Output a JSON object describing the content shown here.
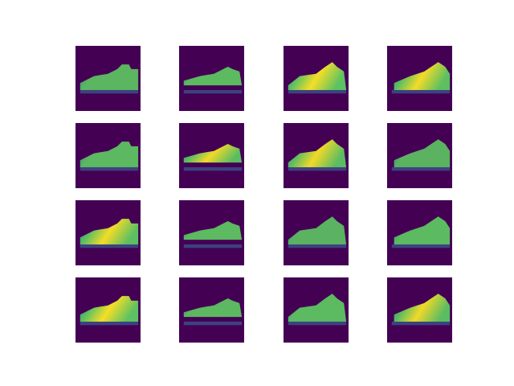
{
  "figure": {
    "rows": 4,
    "cols": 4,
    "colormap": [
      "#440154",
      "#3b528b",
      "#21918c",
      "#5ec962",
      "#fde725"
    ],
    "background": "#440154",
    "subject": "sneaker",
    "tiles": [
      {
        "name": "r1c1",
        "brightness": 0.6
      },
      {
        "name": "r1c2",
        "brightness": 0.7
      },
      {
        "name": "r1c3",
        "brightness": 0.85
      },
      {
        "name": "r1c4",
        "brightness": 0.8
      },
      {
        "name": "r2c1",
        "brightness": 0.65
      },
      {
        "name": "r2c2",
        "brightness": 0.75
      },
      {
        "name": "r2c3",
        "brightness": 0.75
      },
      {
        "name": "r2c4",
        "brightness": 0.55
      },
      {
        "name": "r3c1",
        "brightness": 0.8
      },
      {
        "name": "r3c2",
        "brightness": 0.7
      },
      {
        "name": "r3c3",
        "brightness": 0.55
      },
      {
        "name": "r3c4",
        "brightness": 0.7
      },
      {
        "name": "r4c1",
        "brightness": 0.85
      },
      {
        "name": "r4c2",
        "brightness": 0.65
      },
      {
        "name": "r4c3",
        "brightness": 0.7
      },
      {
        "name": "r4c4",
        "brightness": 0.75
      }
    ]
  }
}
